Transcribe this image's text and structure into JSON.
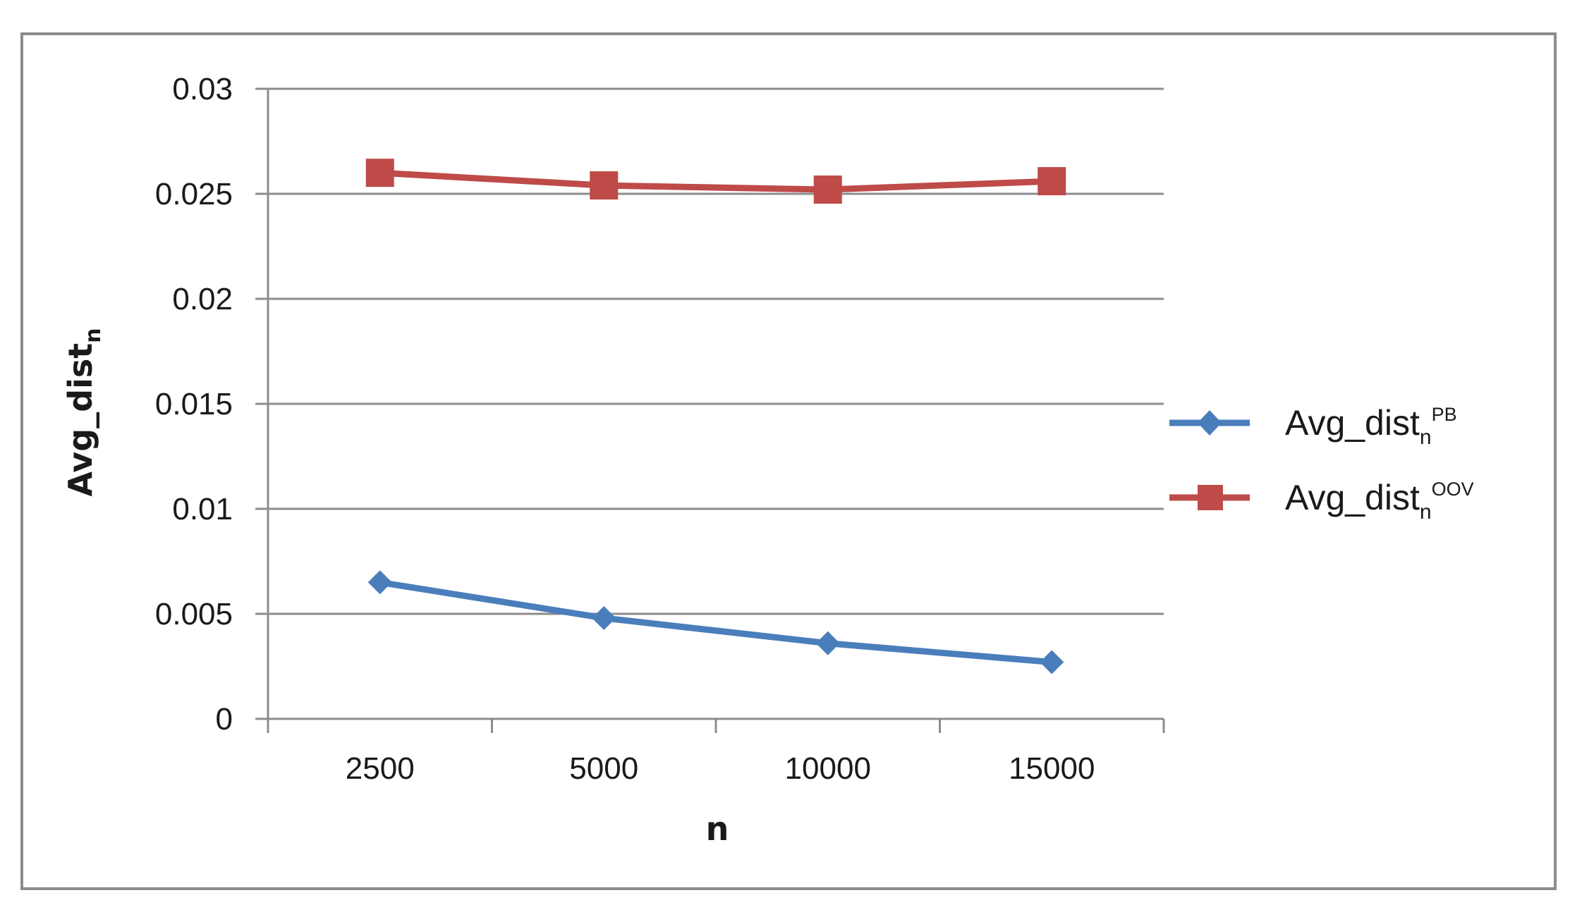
{
  "chart_data": {
    "type": "line",
    "categories": [
      "2500",
      "5000",
      "10000",
      "15000"
    ],
    "series": [
      {
        "name_main": "Avg_dist",
        "name_sub": "n",
        "name_sup": "PB",
        "values": [
          0.0065,
          0.0048,
          0.0036,
          0.0027
        ],
        "color": "#4a7ebb",
        "marker": "diamond"
      },
      {
        "name_main": "Avg_dist",
        "name_sub": "n",
        "name_sup": "OOV",
        "values": [
          0.026,
          0.0254,
          0.0252,
          0.0256
        ],
        "color": "#be4b48",
        "marker": "square"
      }
    ],
    "xlabel": "n",
    "ylabel_main": "Avg_dist",
    "ylabel_sub": "n",
    "ylim": [
      0,
      0.03
    ],
    "yticks": [
      "0",
      "0.005",
      "0.01",
      "0.015",
      "0.02",
      "0.025",
      "0.03"
    ],
    "grid": true,
    "legend_position": "right"
  }
}
